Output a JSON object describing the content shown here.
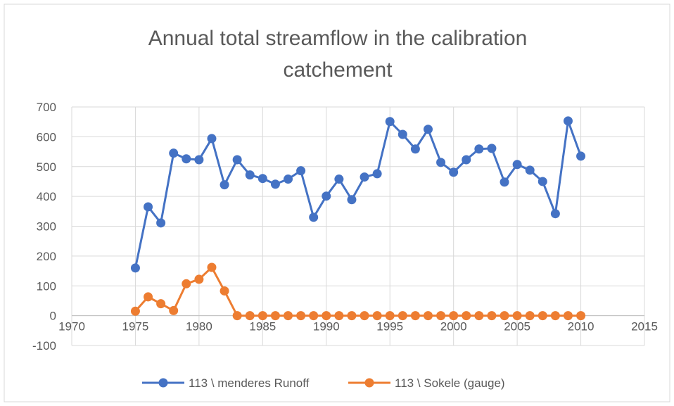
{
  "chart_data": {
    "type": "line",
    "title": "Annual total streamflow in the calibration catchement",
    "x": [
      1975,
      1976,
      1977,
      1978,
      1979,
      1980,
      1981,
      1982,
      1983,
      1984,
      1985,
      1986,
      1987,
      1988,
      1989,
      1990,
      1991,
      1992,
      1993,
      1994,
      1995,
      1996,
      1997,
      1998,
      1999,
      2000,
      2001,
      2002,
      2003,
      2004,
      2005,
      2006,
      2007,
      2008,
      2009,
      2010
    ],
    "series": [
      {
        "name": "113 \\ menderes Runoff",
        "color": "#4472c4",
        "values": [
          160,
          365,
          311,
          545,
          526,
          523,
          594,
          439,
          523,
          472,
          460,
          441,
          458,
          486,
          330,
          401,
          458,
          389,
          465,
          476,
          651,
          608,
          559,
          625,
          514,
          481,
          523,
          559,
          561,
          448,
          507,
          488,
          450,
          342,
          653,
          535
        ]
      },
      {
        "name": "113 \\ Sokele (gauge)",
        "color": "#ed7d31",
        "values": [
          15,
          63,
          40,
          17,
          107,
          122,
          162,
          83,
          0,
          0,
          0,
          0,
          0,
          0,
          0,
          0,
          0,
          0,
          0,
          0,
          0,
          0,
          0,
          0,
          0,
          0,
          0,
          0,
          0,
          0,
          0,
          0,
          0,
          0,
          0,
          0
        ]
      }
    ],
    "xlim": [
      1970,
      2015
    ],
    "xticks": [
      1970,
      1975,
      1980,
      1985,
      1990,
      1995,
      2000,
      2005,
      2010,
      2015
    ],
    "ylim": [
      -100,
      700
    ],
    "yticks": [
      -100,
      0,
      100,
      200,
      300,
      400,
      500,
      600,
      700
    ],
    "grid": true,
    "legend": "bottom"
  }
}
